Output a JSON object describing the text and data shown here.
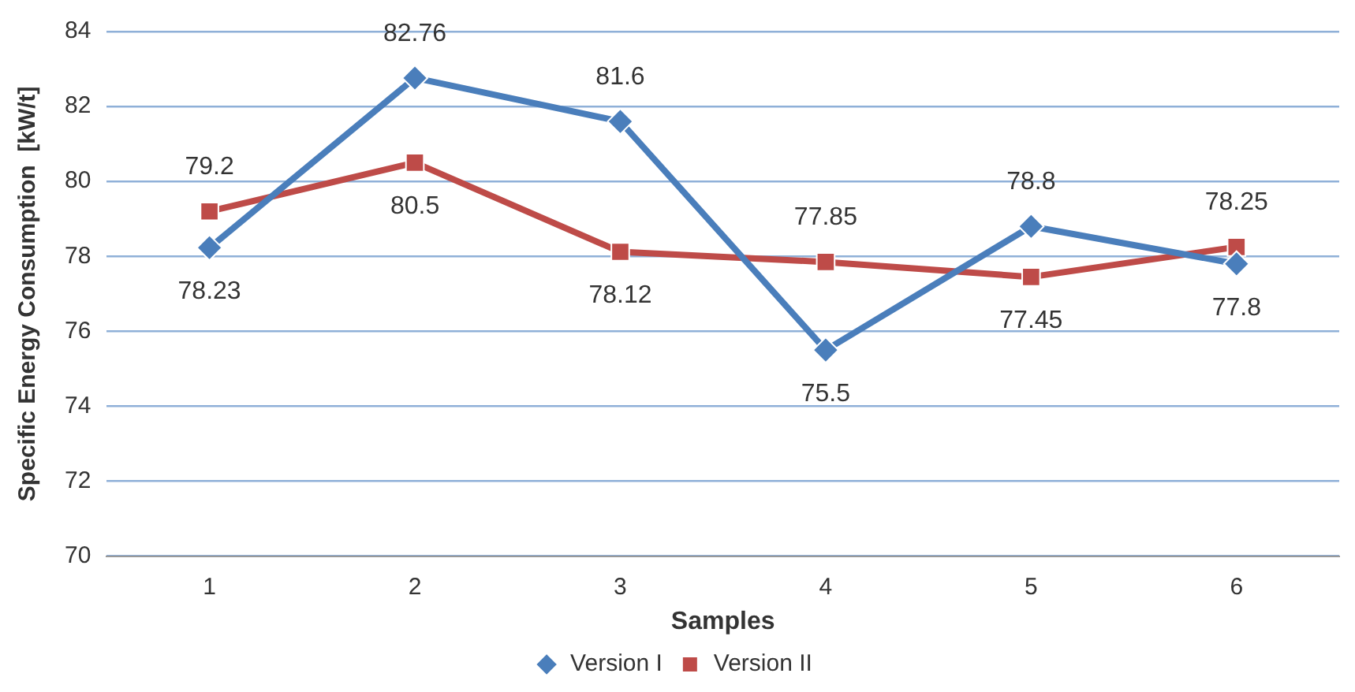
{
  "chart_data": {
    "type": "line",
    "xlabel": "Samples",
    "ylabel": "Specific Energy Consumption  [kW/t]",
    "categories": [
      "1",
      "2",
      "3",
      "4",
      "5",
      "6"
    ],
    "series": [
      {
        "name": "Version I",
        "color": "#4a7ebb",
        "marker": "diamond",
        "values": [
          78.23,
          82.76,
          81.6,
          75.5,
          78.8,
          77.8
        ]
      },
      {
        "name": "Version II",
        "color": "#be4b48",
        "marker": "square",
        "values": [
          79.2,
          80.5,
          78.12,
          77.85,
          77.45,
          78.25
        ]
      }
    ],
    "ylim": [
      70,
      84
    ],
    "yticks": [
      70,
      72,
      74,
      76,
      78,
      80,
      82,
      84
    ],
    "grid": "y",
    "legend": "bottom",
    "data_labels": true
  }
}
